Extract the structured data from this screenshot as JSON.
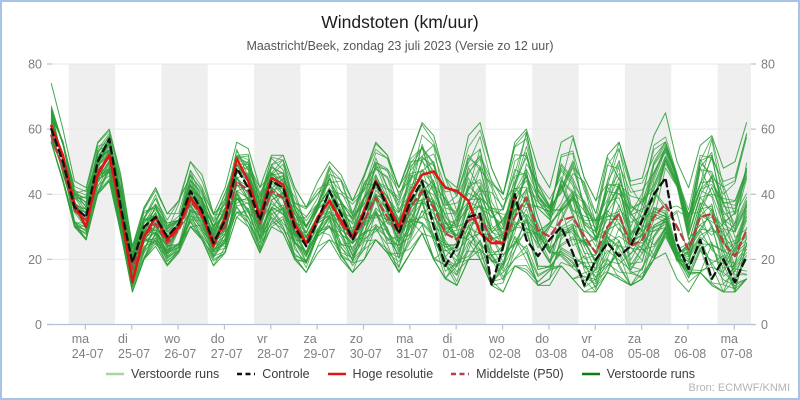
{
  "header": {
    "title": "Windstoten (km/uur)",
    "subtitle": "Maastricht/Beek, zondag 23 juli 2023 (Versie zo 12 uur)"
  },
  "source": "Bron: ECMWF/KNMI",
  "chart_data": {
    "type": "line",
    "title": "Windstoten (km/uur)",
    "subtitle": "Maastricht/Beek, zondag 23 juli 2023 (Versie zo 12 uur)",
    "ylabel": "",
    "xlabel": "",
    "ylim": [
      0,
      80
    ],
    "y_ticks": [
      0,
      20,
      40,
      60,
      80
    ],
    "grid": true,
    "alternating_day_bands": true,
    "band_color": "#efefef",
    "x_days": [
      {
        "name": "ma",
        "date": "24-07"
      },
      {
        "name": "di",
        "date": "25-07"
      },
      {
        "name": "wo",
        "date": "26-07"
      },
      {
        "name": "do",
        "date": "27-07"
      },
      {
        "name": "vr",
        "date": "28-07"
      },
      {
        "name": "za",
        "date": "29-07"
      },
      {
        "name": "zo",
        "date": "30-07"
      },
      {
        "name": "ma",
        "date": "31-07"
      },
      {
        "name": "di",
        "date": "01-08"
      },
      {
        "name": "wo",
        "date": "02-08"
      },
      {
        "name": "do",
        "date": "03-08"
      },
      {
        "name": "vr",
        "date": "04-08"
      },
      {
        "name": "za",
        "date": "05-08"
      },
      {
        "name": "zo",
        "date": "06-08"
      },
      {
        "name": "ma",
        "date": "07-08"
      }
    ],
    "time_step_hours": 6,
    "start_offset_hours": -9,
    "ensemble_count": 50,
    "series": [
      {
        "name": "Controle",
        "style": "dashed",
        "color": "#111111",
        "values": [
          60,
          50,
          36,
          33,
          50,
          57,
          36,
          19,
          30,
          33,
          27,
          31,
          41,
          35,
          25,
          32,
          48,
          42,
          32,
          44,
          42,
          30,
          24,
          32,
          41,
          34,
          26,
          34,
          44,
          36,
          28,
          38,
          44,
          30,
          18,
          24,
          33,
          34,
          12,
          24,
          40,
          26,
          21,
          26,
          30,
          22,
          12,
          20,
          25,
          21,
          24,
          32,
          40,
          45,
          25,
          17,
          26,
          14,
          20,
          13,
          21
        ]
      },
      {
        "name": "Hoge resolutie",
        "style": "solid",
        "color": "#e01515",
        "values": [
          61,
          52,
          37,
          30,
          46,
          52,
          35,
          13,
          27,
          33,
          26,
          30,
          39,
          34,
          24,
          33,
          51,
          44,
          33,
          45,
          43,
          31,
          25,
          33,
          38,
          32,
          27,
          35,
          44,
          37,
          30,
          40,
          46,
          47,
          42,
          41,
          38,
          28,
          25,
          25,
          40
        ]
      },
      {
        "name": "Middelste (P50)",
        "style": "dashed",
        "color": "#b84040",
        "values": [
          58,
          48,
          35,
          32,
          47,
          52,
          34,
          17,
          27,
          31,
          25,
          29,
          38,
          33,
          26,
          30,
          44,
          41,
          31,
          41,
          39,
          29,
          25,
          32,
          38,
          31,
          26,
          32,
          39,
          33,
          28,
          36,
          41,
          36,
          28,
          26,
          32,
          33,
          26,
          25,
          33,
          39,
          29,
          27,
          32,
          33,
          27,
          22,
          30,
          34,
          24,
          26,
          33,
          37,
          30,
          23,
          33,
          34,
          25,
          21,
          29
        ]
      },
      {
        "name": "Verstoorde runs (envelope min)",
        "style": "solid",
        "color": "#2d9e38",
        "values": [
          56,
          44,
          30,
          26,
          40,
          44,
          28,
          10,
          20,
          24,
          18,
          22,
          30,
          26,
          18,
          22,
          33,
          30,
          22,
          30,
          28,
          20,
          16,
          22,
          26,
          20,
          16,
          20,
          26,
          22,
          16,
          22,
          28,
          20,
          14,
          12,
          20,
          20,
          12,
          10,
          18,
          16,
          12,
          12,
          18,
          14,
          10,
          10,
          16,
          14,
          12,
          14,
          20,
          22,
          14,
          10,
          16,
          12,
          10,
          10,
          14
        ]
      },
      {
        "name": "Verstoorde runs (envelope max)",
        "style": "solid",
        "color": "#2d9e38",
        "values": [
          74,
          60,
          44,
          42,
          56,
          60,
          46,
          24,
          36,
          42,
          34,
          38,
          50,
          46,
          34,
          42,
          56,
          54,
          42,
          52,
          52,
          42,
          36,
          44,
          50,
          46,
          38,
          46,
          56,
          52,
          42,
          52,
          62,
          58,
          45,
          42,
          58,
          62,
          48,
          40,
          56,
          60,
          48,
          42,
          56,
          58,
          45,
          38,
          52,
          56,
          44,
          45,
          58,
          65,
          50,
          42,
          55,
          58,
          48,
          50,
          62
        ]
      }
    ],
    "legend": [
      {
        "label": "Verstoorde runs",
        "color": "#a9d3a2",
        "dash": false
      },
      {
        "label": "Controle",
        "color": "#111111",
        "dash": true
      },
      {
        "label": "Hoge resolutie",
        "color": "#e01515",
        "dash": false
      },
      {
        "label": "Middelste (P50)",
        "color": "#b84040",
        "dash": true
      },
      {
        "label": "Verstoorde runs",
        "color": "#0f7d0f",
        "dash": false
      }
    ],
    "legend_position": "bottom",
    "colors": {
      "ensemble_line": "#2d9e38",
      "axis": "#b6c2d2",
      "tick_label": "#7f7f7f",
      "gridline": "#e7e7e7",
      "frame_border": "#a6c5e6"
    }
  }
}
